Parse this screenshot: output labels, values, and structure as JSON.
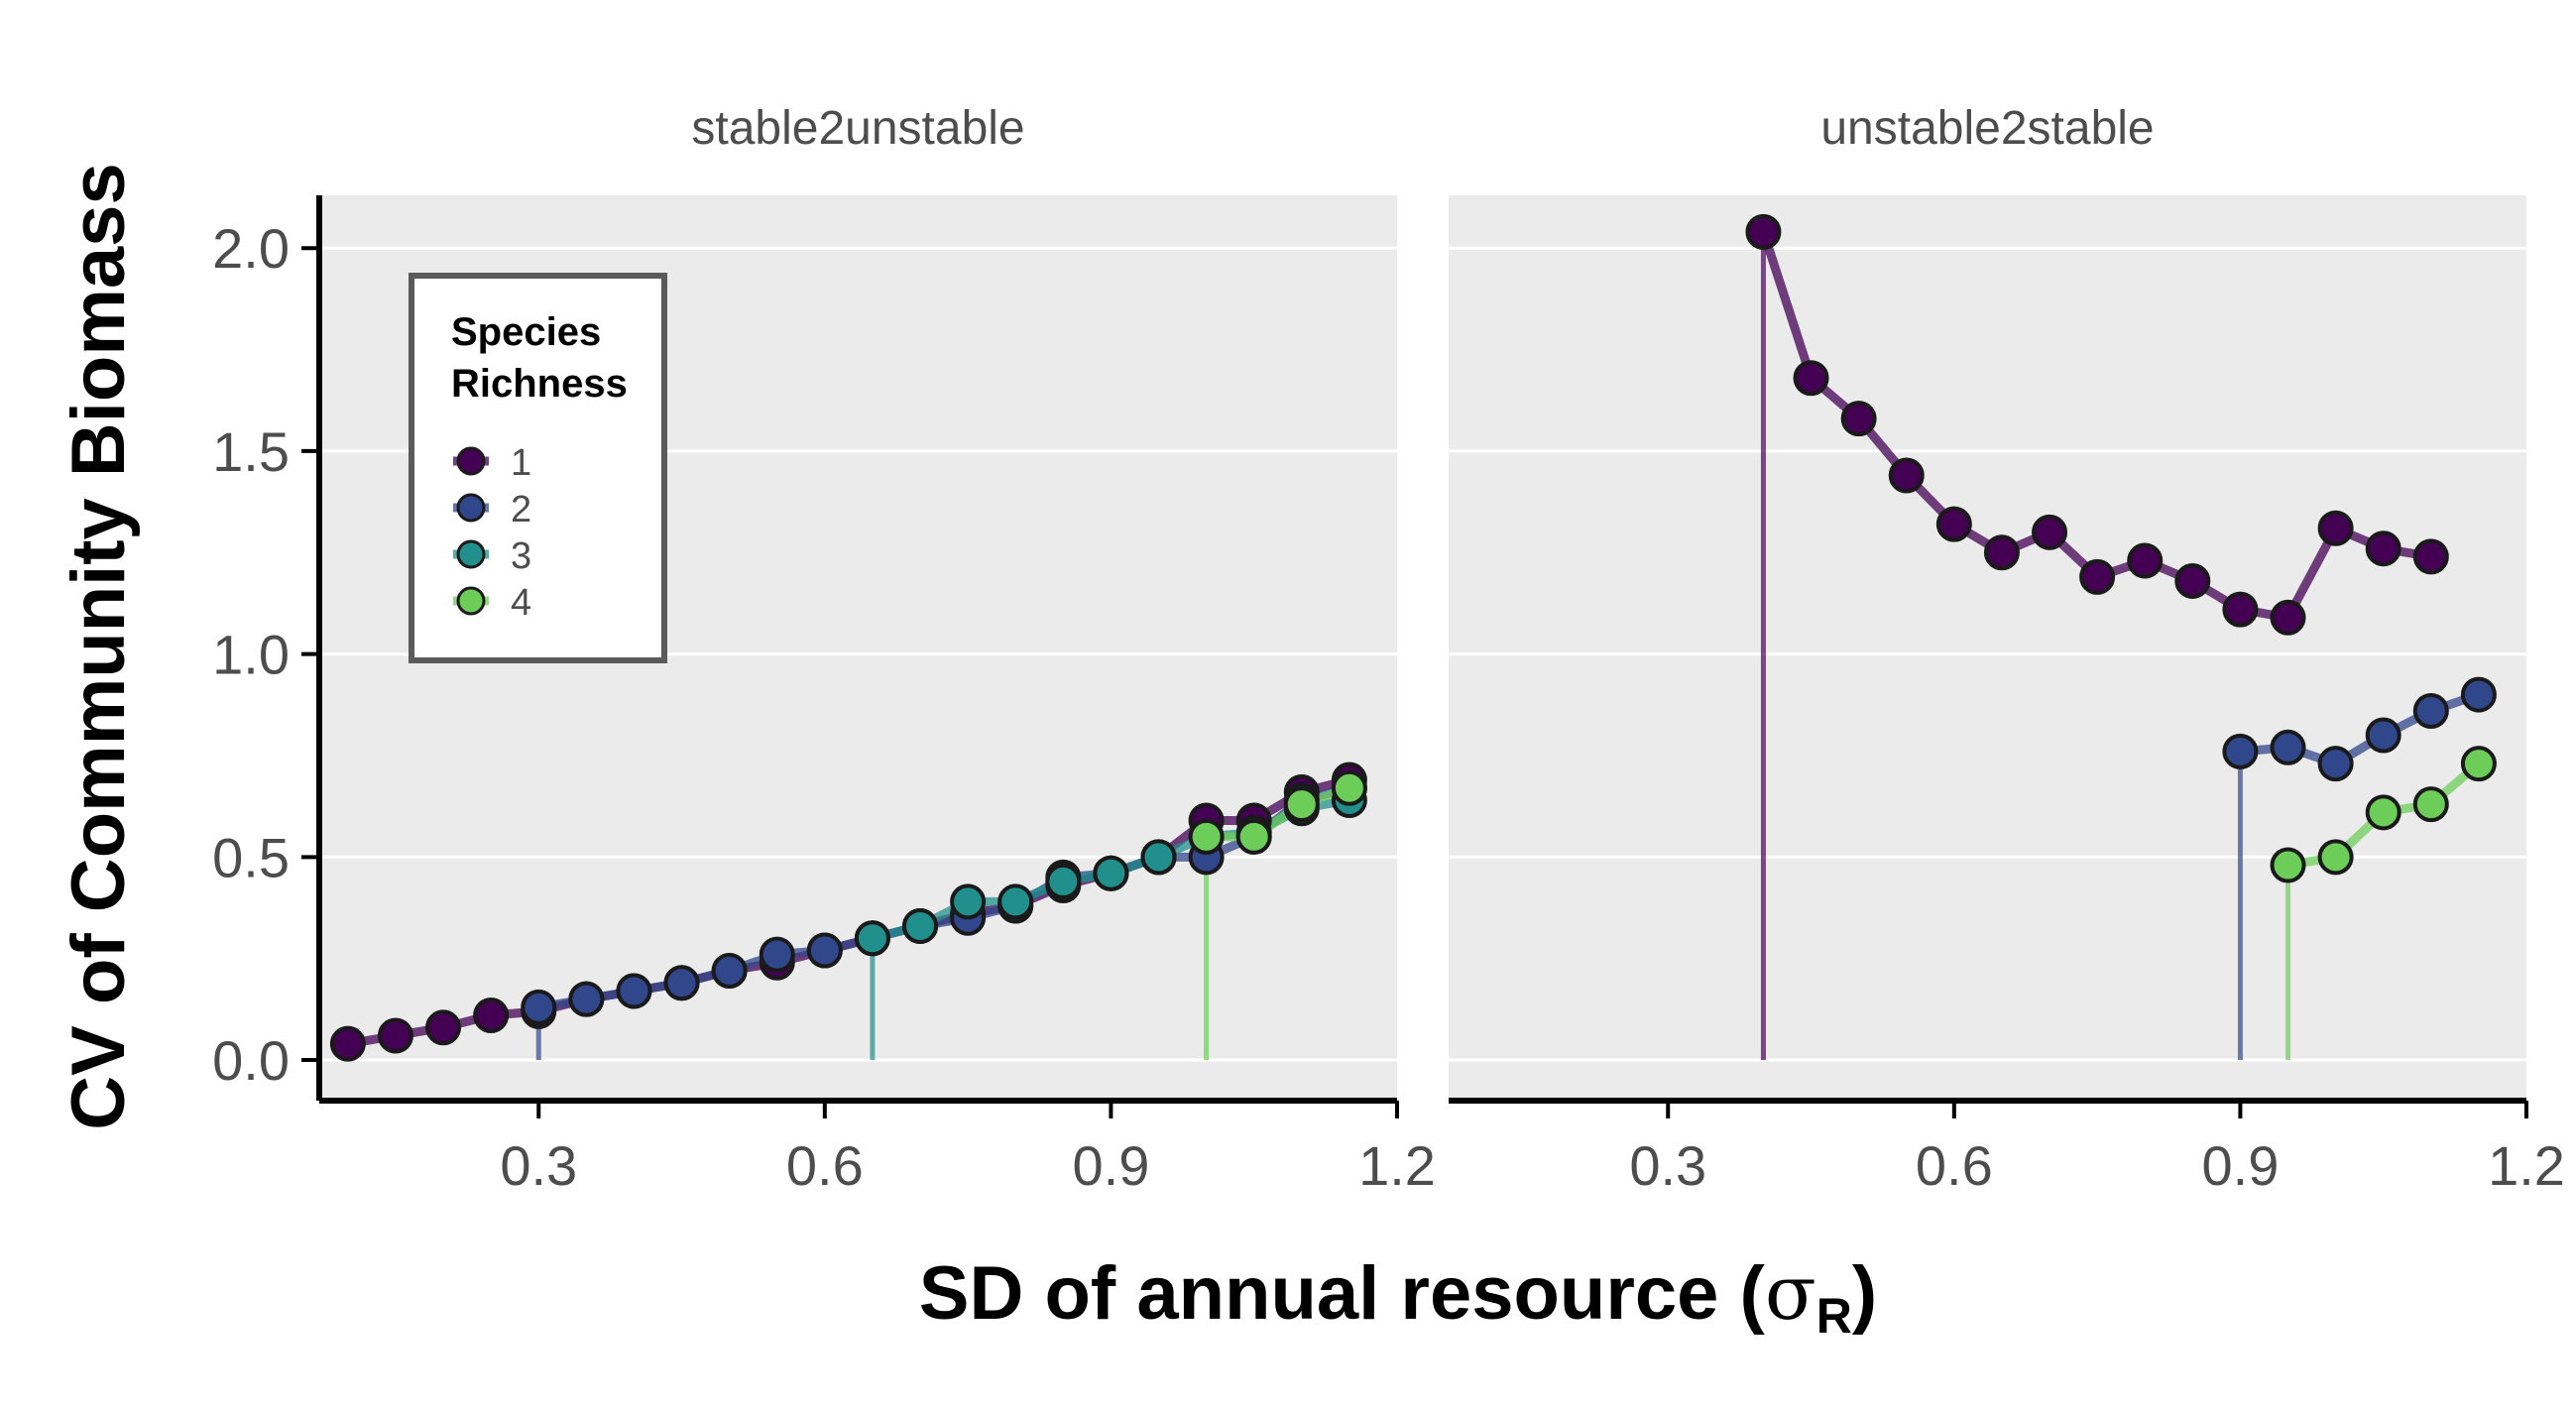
{
  "chart_data": {
    "type": "line",
    "panels": [
      {
        "title": "stable2unstable",
        "series": [
          {
            "name": "1",
            "x": [
              0.1,
              0.15,
              0.2,
              0.25,
              0.3,
              0.35,
              0.4,
              0.45,
              0.5,
              0.55,
              0.6,
              0.65,
              0.7,
              0.75,
              0.8,
              0.85,
              0.9,
              0.95,
              1.0,
              1.05,
              1.1,
              1.15
            ],
            "y": [
              0.04,
              0.06,
              0.08,
              0.11,
              0.12,
              0.15,
              0.17,
              0.19,
              0.22,
              0.24,
              0.27,
              0.3,
              0.33,
              0.36,
              0.38,
              0.43,
              0.46,
              0.5,
              0.59,
              0.59,
              0.66,
              0.69
            ]
          },
          {
            "name": "2",
            "x": [
              0.3,
              0.35,
              0.4,
              0.45,
              0.5,
              0.55,
              0.6,
              0.65,
              0.7,
              0.75,
              0.8,
              0.85,
              0.9,
              0.95,
              1.0,
              1.05,
              1.1,
              1.15
            ],
            "y": [
              0.13,
              0.15,
              0.17,
              0.19,
              0.22,
              0.26,
              0.27,
              0.3,
              0.33,
              0.35,
              0.38,
              0.45,
              0.46,
              0.5,
              0.5,
              0.55,
              0.64,
              0.67
            ],
            "start": 0.3
          },
          {
            "name": "3",
            "x": [
              0.65,
              0.7,
              0.75,
              0.8,
              0.85,
              0.9,
              0.95,
              1.0,
              1.05,
              1.1,
              1.15
            ],
            "y": [
              0.3,
              0.33,
              0.39,
              0.39,
              0.44,
              0.46,
              0.5,
              0.55,
              0.56,
              0.62,
              0.64
            ],
            "start": 0.65
          },
          {
            "name": "4",
            "x": [
              1.0,
              1.05,
              1.1,
              1.15
            ],
            "y": [
              0.55,
              0.55,
              0.63,
              0.67
            ],
            "start": 1.0
          }
        ]
      },
      {
        "title": "unstable2stable",
        "series": [
          {
            "name": "1",
            "x": [
              0.4,
              0.45,
              0.5,
              0.55,
              0.6,
              0.65,
              0.7,
              0.75,
              0.8,
              0.85,
              0.9,
              0.95,
              1.0,
              1.05,
              1.1
            ],
            "y": [
              2.04,
              1.68,
              1.58,
              1.44,
              1.32,
              1.25,
              1.3,
              1.19,
              1.23,
              1.18,
              1.11,
              1.09,
              1.31,
              1.26,
              1.24
            ],
            "start": 0.4
          },
          {
            "name": "2",
            "x": [
              0.9,
              0.95,
              1.0,
              1.05,
              1.1,
              1.15
            ],
            "y": [
              0.76,
              0.77,
              0.73,
              0.8,
              0.86,
              0.9
            ],
            "start": 0.9
          },
          {
            "name": "4",
            "x": [
              0.95,
              1.0,
              1.05,
              1.1,
              1.15
            ],
            "y": [
              0.48,
              0.5,
              0.61,
              0.63,
              0.73
            ],
            "start": 0.95
          }
        ]
      }
    ],
    "xlabel": "SD of annual resource (σR)",
    "xlabel_main": "SD of annual resource (",
    "xlabel_symbol": "σ",
    "xlabel_sub": "R",
    "xlabel_close": ")",
    "ylabel": "CV of Community Biomass",
    "xlim": [
      0.07,
      1.2
    ],
    "ylim": [
      -0.1,
      2.13
    ],
    "xticks": [
      0.3,
      0.6,
      0.9,
      1.2
    ],
    "xtick_labels": [
      "0.3",
      "0.6",
      "0.9",
      "1.2"
    ],
    "yticks": [
      0.0,
      0.5,
      1.0,
      1.5,
      2.0
    ],
    "ytick_labels": [
      "0.0",
      "0.5",
      "1.0",
      "1.5",
      "2.0"
    ],
    "legend": {
      "title_line1": "Species",
      "title_line2": "Richness",
      "placement": "top-left",
      "entries": [
        "1",
        "2",
        "3",
        "4"
      ]
    },
    "colors": {
      "1": "#440154",
      "2": "#31478c",
      "3": "#21908c",
      "4": "#6dcd59"
    },
    "grid": true,
    "panel_background": "#ebebeb"
  }
}
